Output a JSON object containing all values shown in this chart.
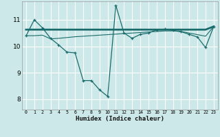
{
  "xlabel": "Humidex (Indice chaleur)",
  "background_color": "#cce8e8",
  "grid_color": "#ffffff",
  "line_color": "#1a6b6b",
  "x_ticks": [
    0,
    1,
    2,
    3,
    4,
    5,
    6,
    7,
    8,
    9,
    10,
    11,
    12,
    13,
    14,
    15,
    16,
    17,
    18,
    19,
    20,
    21,
    22,
    23
  ],
  "ylim": [
    7.6,
    11.7
  ],
  "xlim": [
    -0.5,
    23.5
  ],
  "y_ticks": [
    8,
    9,
    10,
    11
  ],
  "series1_x": [
    0,
    1,
    2,
    3,
    4,
    5,
    6,
    7,
    8,
    9,
    10,
    11,
    12,
    13,
    14,
    15,
    16,
    17,
    18,
    19,
    20,
    21,
    22,
    23
  ],
  "series1_y": [
    10.4,
    11.0,
    10.7,
    10.3,
    10.05,
    9.78,
    9.75,
    8.7,
    8.7,
    8.35,
    8.1,
    11.55,
    10.5,
    10.3,
    10.45,
    10.5,
    10.62,
    10.65,
    10.6,
    10.55,
    10.45,
    10.35,
    9.95,
    10.75
  ],
  "series2_x": [
    0,
    1,
    2,
    3,
    4,
    5,
    6,
    7,
    8,
    9,
    10,
    11,
    12,
    13,
    14,
    15,
    16,
    17,
    18,
    19,
    20,
    21,
    22,
    23
  ],
  "series2_y": [
    10.63,
    10.63,
    10.63,
    10.63,
    10.63,
    10.63,
    10.63,
    10.63,
    10.63,
    10.63,
    10.63,
    10.63,
    10.63,
    10.63,
    10.63,
    10.63,
    10.63,
    10.63,
    10.63,
    10.63,
    10.63,
    10.63,
    10.63,
    10.75
  ],
  "series3_x": [
    0,
    1,
    2,
    3,
    4,
    5,
    6,
    7,
    8,
    9,
    10,
    11,
    12,
    13,
    14,
    15,
    16,
    17,
    18,
    19,
    20,
    21,
    22,
    23
  ],
  "series3_y": [
    10.4,
    10.4,
    10.42,
    10.28,
    10.3,
    10.33,
    10.36,
    10.38,
    10.4,
    10.42,
    10.44,
    10.46,
    10.48,
    10.5,
    10.52,
    10.54,
    10.56,
    10.58,
    10.58,
    10.56,
    10.5,
    10.44,
    10.38,
    10.75
  ]
}
